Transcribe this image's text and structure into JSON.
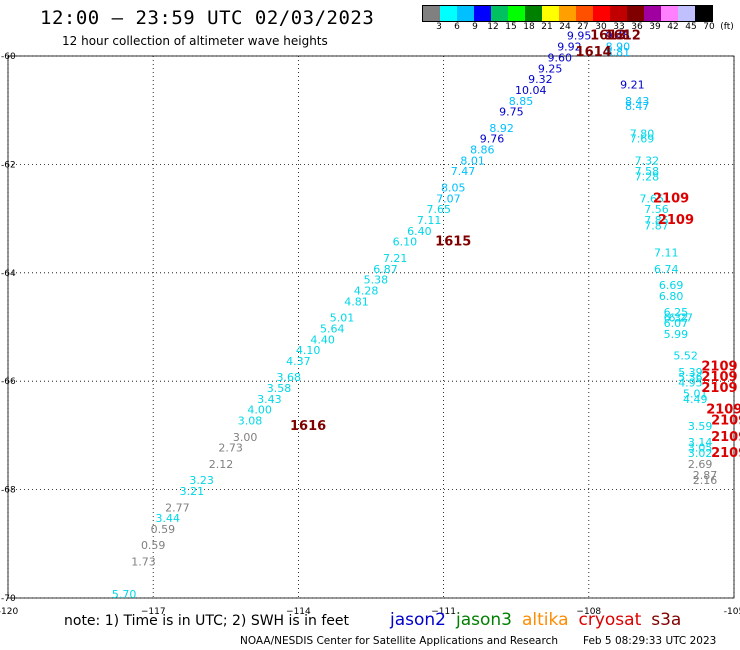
{
  "header": {
    "title": "12:00 – 23:59 UTC 02/03/2023",
    "subtitle": "12 hour collection of altimeter wave heights"
  },
  "colorbar": {
    "colors": [
      "#808080",
      "#00ffff",
      "#00c0ff",
      "#0000ff",
      "#00c060",
      "#00ff00",
      "#008000",
      "#ffff00",
      "#ffa000",
      "#ff5000",
      "#ff0000",
      "#c00000",
      "#800000",
      "#a000a0",
      "#ff80ff",
      "#c0c0ff",
      "#000000"
    ],
    "labels": [
      "3",
      "6",
      "9",
      "12",
      "15",
      "18",
      "21",
      "24",
      "27",
      "30",
      "33",
      "36",
      "39",
      "42",
      "45",
      "70",
      "(ft)"
    ]
  },
  "footer": {
    "note": "note:  1) Time is in UTC;  2) SWH is in feet",
    "satellites": [
      {
        "name": "jason2",
        "color": "#0000cc"
      },
      {
        "name": "jason3",
        "color": "#008000"
      },
      {
        "name": "altika",
        "color": "#ff8c00"
      },
      {
        "name": "cryosat",
        "color": "#dd0000"
      },
      {
        "name": "s3a",
        "color": "#800000"
      }
    ],
    "credit": "NOAA/NESDIS Center for Satellite Applications and Research",
    "timestamp": "Feb  5 08:29:33 UTC 2023"
  },
  "chart_data": {
    "type": "scatter",
    "title": "12:00 – 23:59 UTC 02/03/2023",
    "subtitle": "12 hour collection of altimeter wave heights",
    "xlabel": "",
    "ylabel": "",
    "xlim": [
      -120,
      -105
    ],
    "ylim": [
      -70,
      -60
    ],
    "x_ticks": [
      -120,
      -117,
      -114,
      -111,
      -108,
      -105
    ],
    "y_ticks": [
      -60,
      -62,
      -64,
      -66,
      -68,
      -70
    ],
    "x_tick_labels": [
      "-120",
      "−117",
      "−114",
      "−111",
      "−108",
      "-105"
    ],
    "y_tick_labels": [
      "-60",
      "-62",
      "-64",
      "-66",
      "-68",
      "-70"
    ],
    "grid": true,
    "points": [
      {
        "lon": -117.6,
        "lat": -70.0,
        "v": "5.70",
        "c": "#00d8e8"
      },
      {
        "lon": -117.2,
        "lat": -69.4,
        "v": "1.73",
        "c": "#808080"
      },
      {
        "lon": -117.0,
        "lat": -69.1,
        "v": "0.59",
        "c": "#808080"
      },
      {
        "lon": -116.8,
        "lat": -68.8,
        "v": "0.59",
        "c": "#808080"
      },
      {
        "lon": -116.7,
        "lat": -68.6,
        "v": "3.44",
        "c": "#00d8e8"
      },
      {
        "lon": -116.5,
        "lat": -68.4,
        "v": "2.77",
        "c": "#808080"
      },
      {
        "lon": -116.2,
        "lat": -68.1,
        "v": "3.21",
        "c": "#00d8e8"
      },
      {
        "lon": -116.0,
        "lat": -67.9,
        "v": "3.23",
        "c": "#00d8e8"
      },
      {
        "lon": -115.6,
        "lat": -67.6,
        "v": "2.12",
        "c": "#808080"
      },
      {
        "lon": -115.4,
        "lat": -67.3,
        "v": "2.73",
        "c": "#808080"
      },
      {
        "lon": -115.1,
        "lat": -67.1,
        "v": "3.00",
        "c": "#808080"
      },
      {
        "lon": -115.0,
        "lat": -66.8,
        "v": "3.08",
        "c": "#00d8e8"
      },
      {
        "lon": -114.8,
        "lat": -66.6,
        "v": "4.00",
        "c": "#00d8e8"
      },
      {
        "lon": -114.6,
        "lat": -66.4,
        "v": "3.43",
        "c": "#00d8e8"
      },
      {
        "lon": -114.4,
        "lat": -66.2,
        "v": "3.58",
        "c": "#00d8e8"
      },
      {
        "lon": -114.2,
        "lat": -66.0,
        "v": "3.68",
        "c": "#00d8e8"
      },
      {
        "lon": -114.0,
        "lat": -65.7,
        "v": "4.37",
        "c": "#00d8e8"
      },
      {
        "lon": -113.8,
        "lat": -65.5,
        "v": "4.10",
        "c": "#00d8e8"
      },
      {
        "lon": -113.5,
        "lat": -65.3,
        "v": "4.40",
        "c": "#00d8e8"
      },
      {
        "lon": -113.3,
        "lat": -65.1,
        "v": "5.64",
        "c": "#00d8e8"
      },
      {
        "lon": -113.1,
        "lat": -64.9,
        "v": "5.01",
        "c": "#00d8e8"
      },
      {
        "lon": -112.8,
        "lat": -64.6,
        "v": "4.81",
        "c": "#00d8e8"
      },
      {
        "lon": -112.6,
        "lat": -64.4,
        "v": "4.28",
        "c": "#00d8e8"
      },
      {
        "lon": -112.4,
        "lat": -64.2,
        "v": "5.38",
        "c": "#00d8e8"
      },
      {
        "lon": -112.2,
        "lat": -64.0,
        "v": "6.87",
        "c": "#00d8e8"
      },
      {
        "lon": -112.0,
        "lat": -63.8,
        "v": "7.21",
        "c": "#00d8e8"
      },
      {
        "lon": -111.8,
        "lat": -63.5,
        "v": "6.10",
        "c": "#00d8e8"
      },
      {
        "lon": -111.5,
        "lat": -63.3,
        "v": "6.40",
        "c": "#00d8e8"
      },
      {
        "lon": -111.3,
        "lat": -63.1,
        "v": "7.11",
        "c": "#00d8e8"
      },
      {
        "lon": -111.1,
        "lat": -62.9,
        "v": "7.65",
        "c": "#00d8e8"
      },
      {
        "lon": -110.9,
        "lat": -62.7,
        "v": "7.07",
        "c": "#00c0ff"
      },
      {
        "lon": -110.8,
        "lat": -62.5,
        "v": "8.05",
        "c": "#00c0ff"
      },
      {
        "lon": -110.6,
        "lat": -62.2,
        "v": "7.47",
        "c": "#00c0ff"
      },
      {
        "lon": -110.4,
        "lat": -62.0,
        "v": "8.01",
        "c": "#00c0ff"
      },
      {
        "lon": -110.2,
        "lat": -61.8,
        "v": "8.86",
        "c": "#00c0ff"
      },
      {
        "lon": -110.0,
        "lat": -61.6,
        "v": "9.76",
        "c": "#0000cc"
      },
      {
        "lon": -109.8,
        "lat": -61.4,
        "v": "8.92",
        "c": "#00c0ff"
      },
      {
        "lon": -109.6,
        "lat": -61.1,
        "v": "9.75",
        "c": "#0000cc"
      },
      {
        "lon": -109.4,
        "lat": -60.9,
        "v": "8.85",
        "c": "#00c0ff"
      },
      {
        "lon": -109.2,
        "lat": -60.7,
        "v": "10.04",
        "c": "#0000cc"
      },
      {
        "lon": -109.0,
        "lat": -60.5,
        "v": "9.32",
        "c": "#0000cc"
      },
      {
        "lon": -108.8,
        "lat": -60.3,
        "v": "9.25",
        "c": "#0000cc"
      },
      {
        "lon": -108.6,
        "lat": -60.1,
        "v": "9.60",
        "c": "#0000cc"
      },
      {
        "lon": -108.4,
        "lat": -59.9,
        "v": "9.92",
        "c": "#0000cc"
      },
      {
        "lon": -108.2,
        "lat": -59.7,
        "v": "9.95",
        "c": "#0000cc"
      },
      {
        "lon": -107.4,
        "lat": -59.7,
        "v": "9.45",
        "c": "#0000cc"
      },
      {
        "lon": -107.4,
        "lat": -59.9,
        "v": "8.90",
        "c": "#00c0ff"
      },
      {
        "lon": -107.4,
        "lat": -60.0,
        "v": "8.81",
        "c": "#00c0ff"
      },
      {
        "lon": -107.1,
        "lat": -60.6,
        "v": "9.21",
        "c": "#0000cc"
      },
      {
        "lon": -107.0,
        "lat": -60.9,
        "v": "8.43",
        "c": "#00c0ff"
      },
      {
        "lon": -107.0,
        "lat": -61.0,
        "v": "8.47",
        "c": "#00c0ff"
      },
      {
        "lon": -106.9,
        "lat": -61.5,
        "v": "7.80",
        "c": "#00d8e8"
      },
      {
        "lon": -106.9,
        "lat": -61.6,
        "v": "7.69",
        "c": "#00d8e8"
      },
      {
        "lon": -106.8,
        "lat": -62.0,
        "v": "7.32",
        "c": "#00d8e8"
      },
      {
        "lon": -106.8,
        "lat": -62.2,
        "v": "7.58",
        "c": "#00d8e8"
      },
      {
        "lon": -106.8,
        "lat": -62.3,
        "v": "7.28",
        "c": "#00d8e8"
      },
      {
        "lon": -106.7,
        "lat": -62.7,
        "v": "7.65",
        "c": "#00d8e8"
      },
      {
        "lon": -106.6,
        "lat": -62.9,
        "v": "7.56",
        "c": "#00d8e8"
      },
      {
        "lon": -106.6,
        "lat": -63.1,
        "v": "7.85",
        "c": "#00d8e8"
      },
      {
        "lon": -106.6,
        "lat": -63.2,
        "v": "7.87",
        "c": "#00d8e8"
      },
      {
        "lon": -106.4,
        "lat": -63.7,
        "v": "7.11",
        "c": "#00d8e8"
      },
      {
        "lon": -106.4,
        "lat": -64.0,
        "v": "6.74",
        "c": "#00d8e8"
      },
      {
        "lon": -106.3,
        "lat": -64.3,
        "v": "6.69",
        "c": "#00d8e8"
      },
      {
        "lon": -106.3,
        "lat": -64.5,
        "v": "6.80",
        "c": "#00d8e8"
      },
      {
        "lon": -106.2,
        "lat": -64.8,
        "v": "6.25",
        "c": "#00d8e8"
      },
      {
        "lon": -106.2,
        "lat": -64.9,
        "v": "6.32",
        "c": "#00d8e8"
      },
      {
        "lon": -106.1,
        "lat": -64.9,
        "v": "6.27",
        "c": "#00d8e8"
      },
      {
        "lon": -106.2,
        "lat": -65.0,
        "v": "6.07",
        "c": "#00d8e8"
      },
      {
        "lon": -106.2,
        "lat": -65.2,
        "v": "5.99",
        "c": "#00d8e8"
      },
      {
        "lon": -106.0,
        "lat": -65.6,
        "v": "5.52",
        "c": "#00d8e8"
      },
      {
        "lon": -105.9,
        "lat": -65.9,
        "v": "5.39",
        "c": "#00d8e8"
      },
      {
        "lon": -105.9,
        "lat": -66.0,
        "v": "5.36",
        "c": "#00d8e8"
      },
      {
        "lon": -105.9,
        "lat": -66.1,
        "v": "4.95",
        "c": "#00d8e8"
      },
      {
        "lon": -105.8,
        "lat": -66.3,
        "v": "5.01",
        "c": "#00d8e8"
      },
      {
        "lon": -105.8,
        "lat": -66.4,
        "v": "4.49",
        "c": "#00d8e8"
      },
      {
        "lon": -105.7,
        "lat": -66.9,
        "v": "3.59",
        "c": "#00d8e8"
      },
      {
        "lon": -105.7,
        "lat": -67.2,
        "v": "3.14",
        "c": "#00d8e8"
      },
      {
        "lon": -105.7,
        "lat": -67.3,
        "v": "3.05",
        "c": "#00d8e8"
      },
      {
        "lon": -105.7,
        "lat": -67.4,
        "v": "3.02",
        "c": "#00d8e8"
      },
      {
        "lon": -105.7,
        "lat": -67.6,
        "v": "2.69",
        "c": "#808080"
      },
      {
        "lon": -105.6,
        "lat": -67.8,
        "v": "2.87",
        "c": "#808080"
      },
      {
        "lon": -105.6,
        "lat": -67.9,
        "v": "2.16",
        "c": "#808080"
      }
    ],
    "time_labels": [
      {
        "lon": -107.6,
        "lat": -59.7,
        "t": "1613",
        "c": "#800000"
      },
      {
        "lon": -107.3,
        "lat": -59.7,
        "t": "1612",
        "c": "#800000"
      },
      {
        "lon": -107.9,
        "lat": -60.0,
        "t": "1614",
        "c": "#800000"
      },
      {
        "lon": -110.8,
        "lat": -63.5,
        "t": "1615",
        "c": "#800000"
      },
      {
        "lon": -113.8,
        "lat": -66.9,
        "t": "1616",
        "c": "#800000"
      },
      {
        "lon": -106.3,
        "lat": -62.7,
        "t": "2109",
        "c": "#dd0000"
      },
      {
        "lon": -106.2,
        "lat": -63.1,
        "t": "2109",
        "c": "#dd0000"
      },
      {
        "lon": -105.3,
        "lat": -65.8,
        "t": "2109",
        "c": "#dd0000"
      },
      {
        "lon": -105.3,
        "lat": -66.0,
        "t": "2109",
        "c": "#dd0000"
      },
      {
        "lon": -105.3,
        "lat": -66.2,
        "t": "2109",
        "c": "#dd0000"
      },
      {
        "lon": -105.2,
        "lat": -66.6,
        "t": "2109",
        "c": "#dd0000"
      },
      {
        "lon": -105.1,
        "lat": -66.8,
        "t": "2109",
        "c": "#dd0000"
      },
      {
        "lon": -105.1,
        "lat": -67.1,
        "t": "2109",
        "c": "#dd0000"
      },
      {
        "lon": -105.1,
        "lat": -67.4,
        "t": "2109",
        "c": "#dd0000"
      }
    ]
  }
}
